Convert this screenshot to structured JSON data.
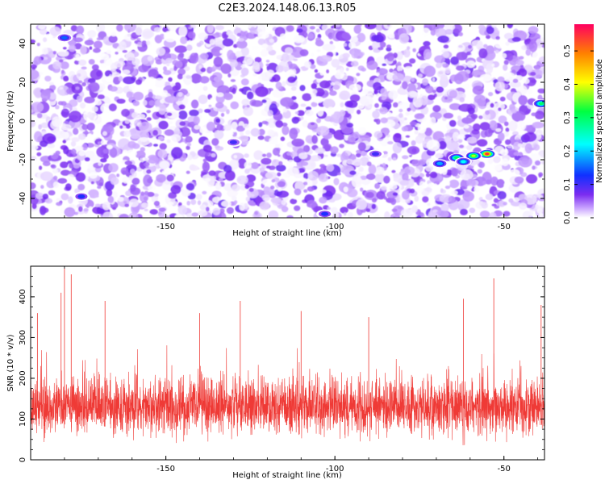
{
  "title": "C2E3.2024.148.06.13.R05",
  "colors": {
    "snr_line": "#ef3a36",
    "axis": "#000000"
  },
  "chart_data": [
    {
      "type": "heatmap",
      "xlabel": "Height of straight line (km)",
      "ylabel": "Frequency (Hz)",
      "xlim": [
        -190,
        -38
      ],
      "ylim": [
        -50,
        50
      ],
      "xticks": [
        -150,
        -100,
        -50
      ],
      "yticks": [
        -40,
        -20,
        0,
        20,
        40
      ],
      "colorbar": {
        "label": "Normalized spectral amplitude",
        "range": [
          0,
          0.58
        ],
        "ticks": [
          "0.0",
          "0.1",
          "0.2",
          "0.3",
          "0.4",
          "0.5"
        ],
        "colormap": [
          "#ffffff",
          "#7b2cf0",
          "#1030ff",
          "#00ffff",
          "#00ff40",
          "#ffff00",
          "#ff8000",
          "#ff0060"
        ]
      },
      "background_amplitude_range": [
        0.0,
        0.08
      ],
      "hotspots": [
        {
          "x": -55,
          "y": -17,
          "value": 0.55
        },
        {
          "x": -59,
          "y": -18,
          "value": 0.38
        },
        {
          "x": -64,
          "y": -19,
          "value": 0.3
        },
        {
          "x": -62,
          "y": -21,
          "value": 0.22
        },
        {
          "x": -69,
          "y": -22,
          "value": 0.18
        },
        {
          "x": -39,
          "y": 9,
          "value": 0.3
        },
        {
          "x": -180,
          "y": 43,
          "value": 0.15
        },
        {
          "x": -175,
          "y": -39,
          "value": 0.12
        },
        {
          "x": -103,
          "y": -48,
          "value": 0.12
        },
        {
          "x": -88,
          "y": -17,
          "value": 0.1
        },
        {
          "x": -130,
          "y": -11,
          "value": 0.1
        }
      ]
    },
    {
      "type": "line",
      "xlabel": "Height of straight line (km)",
      "ylabel": "SNR (10 * v/v)",
      "xlim": [
        -190,
        -38
      ],
      "ylim": [
        0,
        475
      ],
      "xticks": [
        -150,
        -100,
        -50
      ],
      "yticks": [
        0,
        100,
        200,
        300,
        400
      ],
      "series": [
        {
          "values_summary": {
            "x_start": -190,
            "x_end": -38,
            "typical_min": 50,
            "typical_center": 130,
            "typical_max": 230,
            "spikes": [
              {
                "x": -180,
                "y": 470
              },
              {
                "x": -178,
                "y": 455
              },
              {
                "x": -181,
                "y": 410
              },
              {
                "x": -168,
                "y": 390
              },
              {
                "x": -140,
                "y": 360
              },
              {
                "x": -128,
                "y": 390
              },
              {
                "x": -110,
                "y": 365
              },
              {
                "x": -90,
                "y": 350
              },
              {
                "x": -62,
                "y": 395
              },
              {
                "x": -53,
                "y": 445
              },
              {
                "x": -39,
                "y": 380
              },
              {
                "x": -188,
                "y": 360
              }
            ]
          }
        }
      ]
    }
  ]
}
